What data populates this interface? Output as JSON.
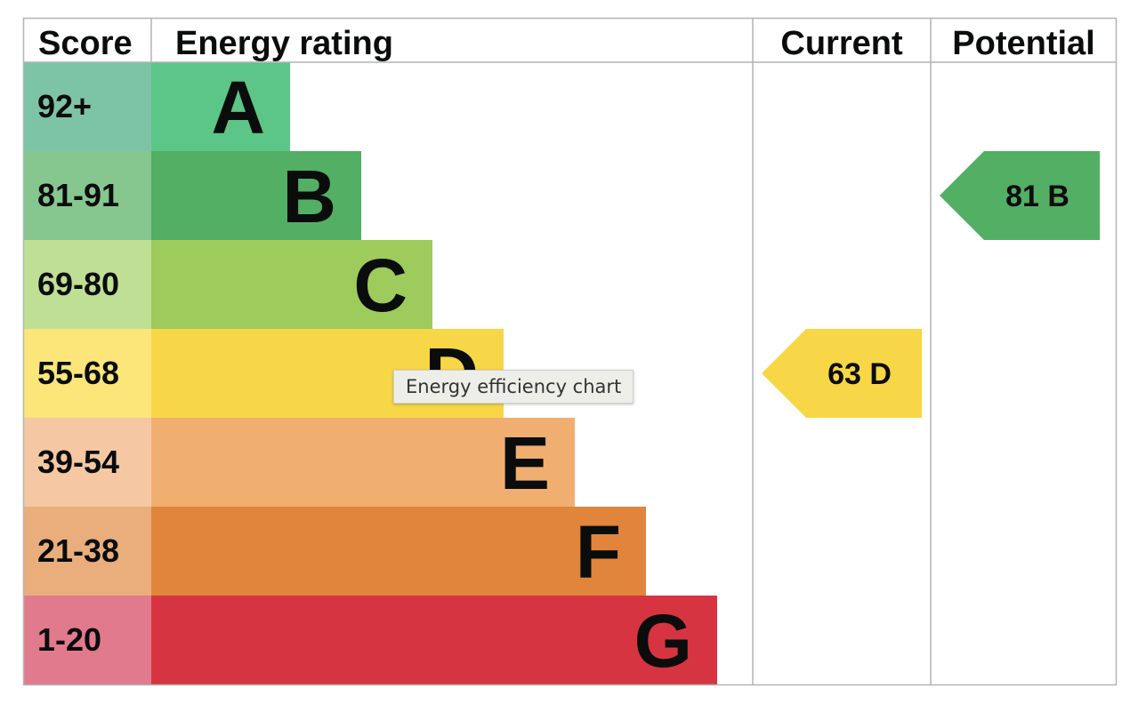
{
  "chart_data": {
    "type": "bar",
    "headers": {
      "score": "Score",
      "rating": "Energy rating",
      "current": "Current",
      "potential": "Potential"
    },
    "bands": [
      {
        "letter": "A",
        "range": "92+",
        "color": "#5bc688",
        "score_color": "#7cc4a5"
      },
      {
        "letter": "B",
        "range": "81-91",
        "color": "#52af63",
        "score_color": "#86c790"
      },
      {
        "letter": "C",
        "range": "69-80",
        "color": "#9dcb5c",
        "score_color": "#bfdf95"
      },
      {
        "letter": "D",
        "range": "55-68",
        "color": "#f7d747",
        "score_color": "#fce67a"
      },
      {
        "letter": "E",
        "range": "39-54",
        "color": "#f0ae70",
        "score_color": "#f5c8a3"
      },
      {
        "letter": "F",
        "range": "21-38",
        "color": "#e0853b",
        "score_color": "#e9ae7c"
      },
      {
        "letter": "G",
        "range": "1-20",
        "color": "#d63441",
        "score_color": "#e17a8c"
      }
    ],
    "current": {
      "score": 63,
      "band": "D",
      "label": "63  D"
    },
    "potential": {
      "score": 81,
      "band": "B",
      "label": "81  B"
    }
  },
  "tooltip": "Energy efficiency chart"
}
